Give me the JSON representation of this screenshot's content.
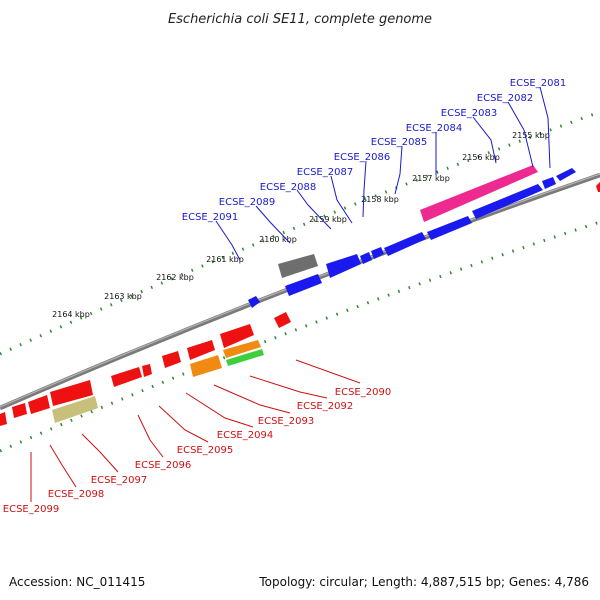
{
  "title": "Escherichia coli SE11, complete genome",
  "footer": {
    "accession": "Accession: NC_011415",
    "topology": "Topology: circular; Length: 4,887,515 bp; Genes: 4,786"
  },
  "colors": {
    "forward_label": "#1a1acc",
    "reverse_label": "#cc1111",
    "backbone": "#8a8a8a",
    "tick": "#2e8b2e",
    "forward_gene": "#1a1aee",
    "reverse_gene": "#ee1111"
  },
  "ticks": [
    "2155 kbp",
    "2156 kbp",
    "2157 kbp",
    "2158 kbp",
    "2159 kbp",
    "2160 kbp",
    "2161 kbp",
    "2162 kbp",
    "2163 kbp",
    "2164 kbp"
  ],
  "forward_labels": [
    "ECSE_2081",
    "ECSE_2082",
    "ECSE_2083",
    "ECSE_2084",
    "ECSE_2085",
    "ECSE_2086",
    "ECSE_2087",
    "ECSE_2088",
    "ECSE_2089",
    "ECSE_2091"
  ],
  "reverse_labels": [
    "ECSE_2090",
    "ECSE_2092",
    "ECSE_2093",
    "ECSE_2094",
    "ECSE_2095",
    "ECSE_2096",
    "ECSE_2097",
    "ECSE_2098",
    "ECSE_2099"
  ]
}
